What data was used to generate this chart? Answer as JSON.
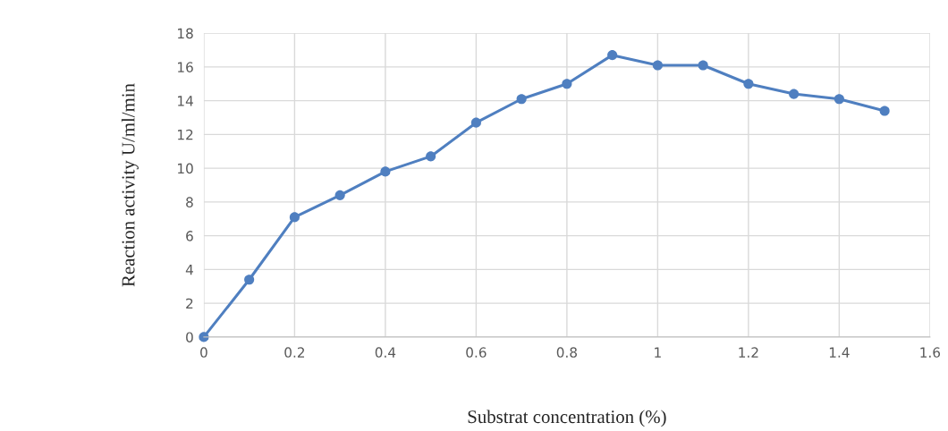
{
  "chart_data": {
    "type": "line",
    "xlabel": "Substrat concentration (%)",
    "ylabel": "Reaction activity U/ml/min",
    "x": [
      0,
      0.1,
      0.2,
      0.3,
      0.4,
      0.5,
      0.6,
      0.7,
      0.8,
      0.9,
      1.0,
      1.1,
      1.2,
      1.3,
      1.4,
      1.5
    ],
    "series": [
      {
        "color": "#4f7fc0",
        "values": [
          0,
          3.4,
          7.1,
          8.4,
          9.8,
          10.7,
          12.7,
          14.1,
          15.0,
          16.7,
          16.1,
          16.1,
          15.0,
          14.4,
          14.1,
          13.4
        ]
      }
    ],
    "xlim": [
      0,
      1.6
    ],
    "xticks": [
      0,
      0.2,
      0.4,
      0.6,
      0.8,
      1,
      1.2,
      1.4,
      1.6
    ],
    "ylim": [
      0,
      18
    ],
    "yticks": [
      0,
      2,
      4,
      6,
      8,
      10,
      12,
      14,
      16,
      18
    ],
    "grid": true,
    "marker": "circle",
    "line_style": "solid"
  }
}
